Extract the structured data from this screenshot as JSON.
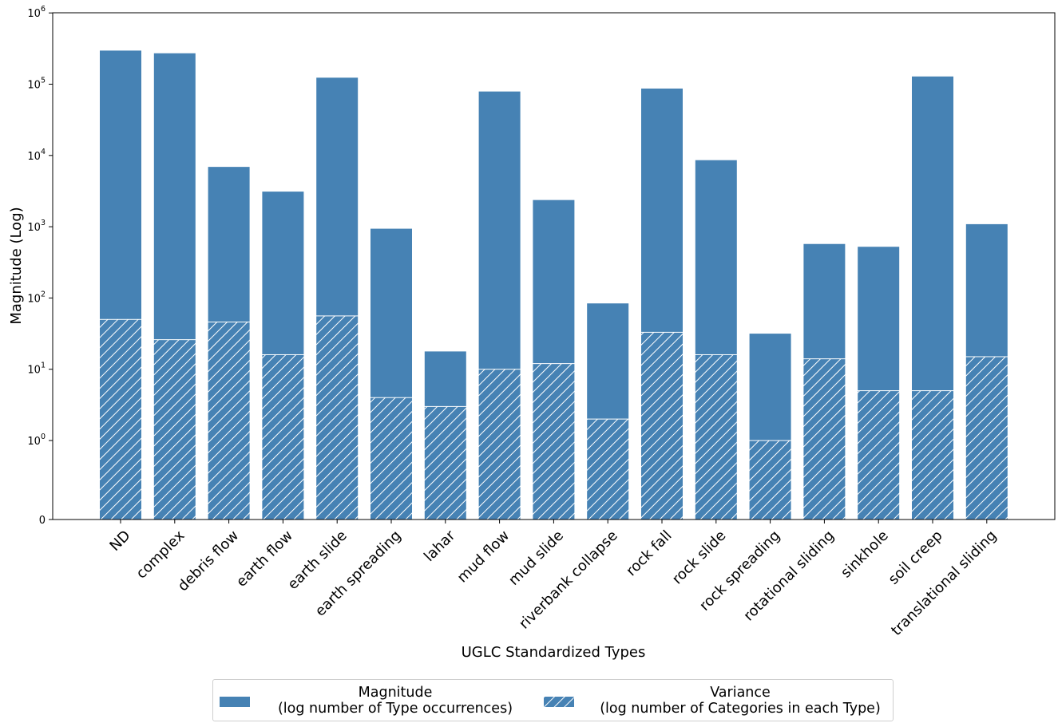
{
  "chart_data": {
    "type": "bar",
    "xlabel": "UGLC Standardized Types",
    "ylabel": "Magnitude (Log)",
    "yscale": "symlog",
    "ylim": [
      0,
      1000000
    ],
    "y_tick_labels": [
      "0",
      "10^0",
      "10^1",
      "10^2",
      "10^3",
      "10^4",
      "10^5",
      "10^6"
    ],
    "categories": [
      "ND",
      "complex",
      "debris flow",
      "earth flow",
      "earth slide",
      "earth spreading",
      "lahar",
      "mud flow",
      "mud slide",
      "riverbank collapse",
      "rock fall",
      "rock slide",
      "rock spreading",
      "rotational sliding",
      "sinkhole",
      "soil creep",
      "translational sliding"
    ],
    "series": [
      {
        "name": "Magnitude\n(log number of Type occurrences)",
        "values": [
          300000,
          275000,
          7000,
          3150,
          125000,
          950,
          18,
          80000,
          2400,
          85,
          88000,
          8700,
          32,
          580,
          530,
          130000,
          1100
        ],
        "color": "#4682b4",
        "pattern": "solid"
      },
      {
        "name": "Variance\n(log number of Categories in each Type)",
        "values": [
          50,
          26,
          46,
          16,
          56,
          4,
          3,
          10,
          12,
          2,
          33,
          16,
          1,
          14,
          5,
          5,
          15
        ],
        "color": "#4682b4",
        "pattern": "hatch"
      }
    ],
    "legend_position": "bottom-center",
    "grid": false
  }
}
